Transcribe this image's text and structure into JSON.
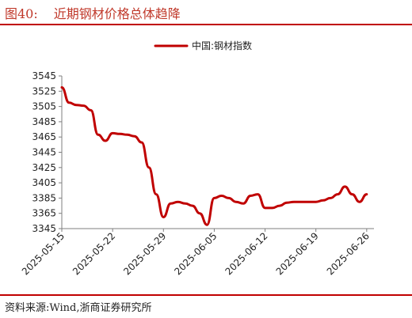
{
  "header": {
    "figure_no": "图40:",
    "title": "近期钢材价格总体趋降"
  },
  "footer": {
    "source": "资料来源:Wind,浙商证券研究所"
  },
  "colors": {
    "series": "#c00000",
    "axis": "#7f7f7f",
    "title": "#c0392b"
  },
  "chart_data": {
    "type": "line",
    "title": "",
    "xlabel": "",
    "ylabel": "",
    "ylim": [
      3345,
      3545
    ],
    "yticks": [
      3345,
      3365,
      3385,
      3405,
      3425,
      3445,
      3465,
      3485,
      3505,
      3525,
      3545
    ],
    "xlim": [
      "2025-05-15",
      "2025-06-27"
    ],
    "xticks": [
      "2025-05-15",
      "2025-05-22",
      "2025-05-29",
      "2025-06-05",
      "2025-06-12",
      "2025-06-19",
      "2025-06-26"
    ],
    "grid": false,
    "legend_position": "top-right",
    "series": [
      {
        "name": "中国:钢材指数",
        "points": [
          [
            "2025-05-15",
            3530
          ],
          [
            "2025-05-16",
            3510
          ],
          [
            "2025-05-17",
            3507
          ],
          [
            "2025-05-18",
            3506
          ],
          [
            "2025-05-19",
            3500
          ],
          [
            "2025-05-20",
            3468
          ],
          [
            "2025-05-21",
            3460
          ],
          [
            "2025-05-22",
            3470
          ],
          [
            "2025-05-23",
            3469
          ],
          [
            "2025-05-24",
            3468
          ],
          [
            "2025-05-25",
            3466
          ],
          [
            "2025-05-26",
            3458
          ],
          [
            "2025-05-27",
            3425
          ],
          [
            "2025-05-28",
            3390
          ],
          [
            "2025-05-29",
            3360
          ],
          [
            "2025-05-30",
            3378
          ],
          [
            "2025-05-31",
            3380
          ],
          [
            "2025-06-01",
            3378
          ],
          [
            "2025-06-02",
            3375
          ],
          [
            "2025-06-03",
            3365
          ],
          [
            "2025-06-04",
            3350
          ],
          [
            "2025-06-05",
            3385
          ],
          [
            "2025-06-06",
            3388
          ],
          [
            "2025-06-07",
            3385
          ],
          [
            "2025-06-08",
            3380
          ],
          [
            "2025-06-09",
            3378
          ],
          [
            "2025-06-10",
            3388
          ],
          [
            "2025-06-11",
            3390
          ],
          [
            "2025-06-12",
            3372
          ],
          [
            "2025-06-13",
            3372
          ],
          [
            "2025-06-14",
            3375
          ],
          [
            "2025-06-15",
            3379
          ],
          [
            "2025-06-16",
            3380
          ],
          [
            "2025-06-17",
            3380
          ],
          [
            "2025-06-18",
            3380
          ],
          [
            "2025-06-19",
            3380
          ],
          [
            "2025-06-20",
            3382
          ],
          [
            "2025-06-21",
            3385
          ],
          [
            "2025-06-22",
            3390
          ],
          [
            "2025-06-23",
            3400
          ],
          [
            "2025-06-24",
            3390
          ],
          [
            "2025-06-25",
            3380
          ],
          [
            "2025-06-26",
            3390
          ]
        ]
      }
    ]
  }
}
